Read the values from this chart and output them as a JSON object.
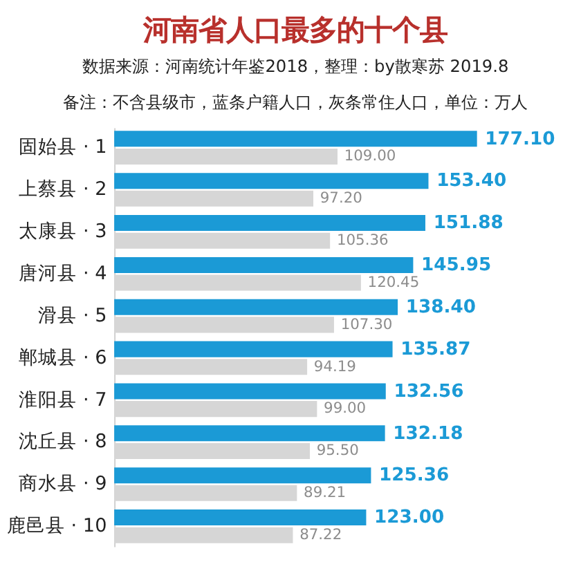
{
  "chart_data": {
    "type": "bar",
    "orientation": "horizontal",
    "title": "河南省人口最多的十个县",
    "annotations": [
      "数据来源：河南统计年鉴2018，整理：by散寒苏 2019.8",
      "备注：不含县级市，蓝条户籍人口，灰条常住人口，单位：万人"
    ],
    "categories": [
      "固始县 · 1",
      "上蔡县 · 2",
      "太康县 · 3",
      "唐河县 · 4",
      "滑县 · 5",
      "郸城县 · 6",
      "淮阳县 · 7",
      "沈丘县 · 8",
      "商水县 · 9",
      "鹿邑县 · 10"
    ],
    "series": [
      {
        "color": "#1b9ad6",
        "values": [
          177.1,
          153.4,
          151.88,
          145.95,
          138.4,
          135.87,
          132.56,
          132.18,
          125.36,
          123.0
        ],
        "value_labels": [
          "177.10",
          "153.40",
          "151.88",
          "145.95",
          "138.40",
          "135.87",
          "132.56",
          "132.18",
          "125.36",
          "123.00"
        ]
      },
      {
        "color": "#d6d6d6",
        "values": [
          109.0,
          97.2,
          105.36,
          120.45,
          107.3,
          94.19,
          99.0,
          95.5,
          89.21,
          87.22
        ],
        "value_labels": [
          "109.00",
          "97.20",
          "105.36",
          "120.45",
          "107.30",
          "94.19",
          "99.00",
          "95.50",
          "89.21",
          "87.22"
        ]
      }
    ]
  }
}
